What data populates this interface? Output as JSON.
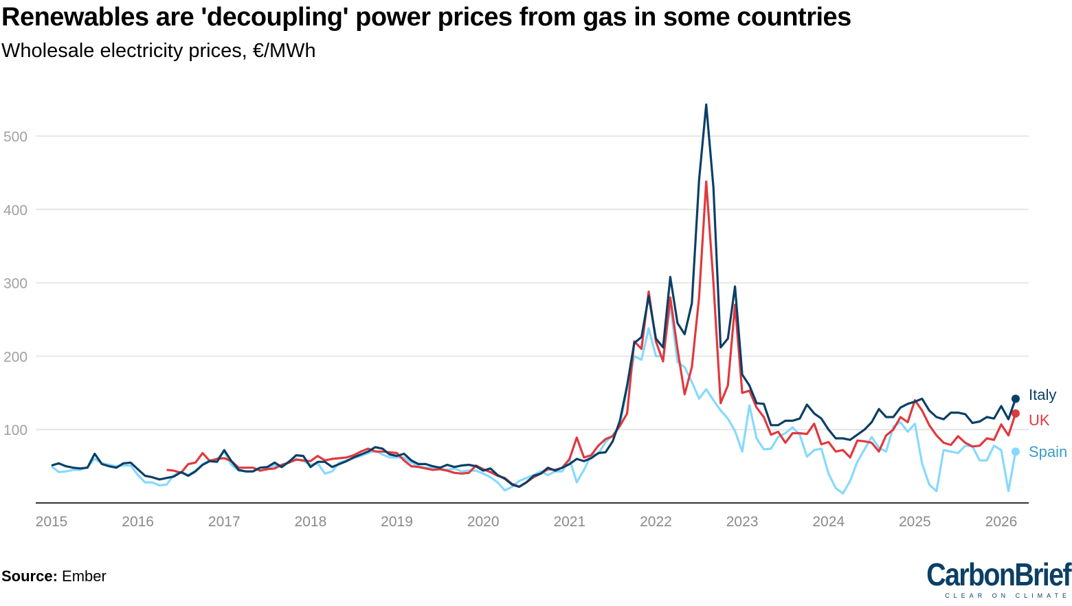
{
  "title": "Renewables are 'decoupling' power prices from gas in some countries",
  "subtitle": "Wholesale electricity prices, €/MWh",
  "source_label": "Source:",
  "source_value": "Ember",
  "logo": {
    "name": "CarbonBrief",
    "tagline": "CLEAR ON CLIMATE"
  },
  "chart_data": {
    "type": "line",
    "title": "Renewables are 'decoupling' power prices from gas in some countries",
    "ylabel": "Wholesale electricity prices, €/MWh",
    "ylim": [
      0,
      550
    ],
    "yticks": [
      100,
      200,
      300,
      400,
      500
    ],
    "xticks": [
      "2015",
      "2016",
      "2017",
      "2018",
      "2019",
      "2020",
      "2021",
      "2022",
      "2023",
      "2024",
      "2025",
      "2026"
    ],
    "grid": "horizontal",
    "legend": "end-of-line labels, right",
    "x": [
      "2015-01",
      "2015-02",
      "2015-03",
      "2015-04",
      "2015-05",
      "2015-06",
      "2015-07",
      "2015-08",
      "2015-09",
      "2015-10",
      "2015-11",
      "2015-12",
      "2016-01",
      "2016-02",
      "2016-03",
      "2016-04",
      "2016-05",
      "2016-06",
      "2016-07",
      "2016-08",
      "2016-09",
      "2016-10",
      "2016-11",
      "2016-12",
      "2017-01",
      "2017-02",
      "2017-03",
      "2017-04",
      "2017-05",
      "2017-06",
      "2017-07",
      "2017-08",
      "2017-09",
      "2017-10",
      "2017-11",
      "2017-12",
      "2018-01",
      "2018-02",
      "2018-03",
      "2018-04",
      "2018-05",
      "2018-06",
      "2018-07",
      "2018-08",
      "2018-09",
      "2018-10",
      "2018-11",
      "2018-12",
      "2019-01",
      "2019-02",
      "2019-03",
      "2019-04",
      "2019-05",
      "2019-06",
      "2019-07",
      "2019-08",
      "2019-09",
      "2019-10",
      "2019-11",
      "2019-12",
      "2020-01",
      "2020-02",
      "2020-03",
      "2020-04",
      "2020-05",
      "2020-06",
      "2020-07",
      "2020-08",
      "2020-09",
      "2020-10",
      "2020-11",
      "2020-12",
      "2021-01",
      "2021-02",
      "2021-03",
      "2021-04",
      "2021-05",
      "2021-06",
      "2021-07",
      "2021-08",
      "2021-09",
      "2021-10",
      "2021-11",
      "2021-12",
      "2022-01",
      "2022-02",
      "2022-03",
      "2022-04",
      "2022-05",
      "2022-06",
      "2022-07",
      "2022-08",
      "2022-09",
      "2022-10",
      "2022-11",
      "2022-12",
      "2023-01",
      "2023-02",
      "2023-03",
      "2023-04",
      "2023-05",
      "2023-06",
      "2023-07",
      "2023-08",
      "2023-09",
      "2023-10",
      "2023-11",
      "2023-12",
      "2024-01",
      "2024-02",
      "2024-03",
      "2024-04",
      "2024-05",
      "2024-06",
      "2024-07",
      "2024-08",
      "2024-09",
      "2024-10",
      "2024-11",
      "2024-12",
      "2025-01",
      "2025-02",
      "2025-03",
      "2025-04",
      "2025-05",
      "2025-06",
      "2025-07",
      "2025-08",
      "2025-09",
      "2025-10",
      "2025-11",
      "2025-12",
      "2026-01",
      "2026-02",
      "2026-03"
    ],
    "series": [
      {
        "name": "Spain",
        "color": "#86d9ff",
        "values": [
          50,
          42,
          43,
          45,
          45,
          49,
          60,
          54,
          52,
          50,
          51,
          51,
          38,
          28,
          28,
          24,
          25,
          38,
          42,
          38,
          44,
          53,
          58,
          60,
          70,
          52,
          44,
          43,
          43,
          48,
          48,
          51,
          49,
          57,
          60,
          57,
          52,
          54,
          40,
          43,
          55,
          58,
          61,
          64,
          68,
          71,
          66,
          62,
          62,
          62,
          55,
          50,
          48,
          48,
          46,
          45,
          47,
          43,
          44,
          44,
          40,
          35,
          28,
          17,
          22,
          30,
          34,
          38,
          43,
          38,
          43,
          43,
          60,
          28,
          45,
          65,
          67,
          83,
          92,
          106,
          156,
          200,
          195,
          238,
          200,
          200,
          270,
          192,
          185,
          165,
          142,
          155,
          140,
          126,
          115,
          98,
          70,
          133,
          88,
          73,
          74,
          90,
          95,
          103,
          93,
          63,
          72,
          74,
          40,
          20,
          13,
          30,
          56,
          73,
          90,
          75,
          70,
          104,
          110,
          97,
          108,
          54,
          25,
          16,
          72,
          70,
          68,
          78,
          77,
          58,
          58,
          78,
          72,
          16,
          70
        ]
      },
      {
        "name": "UK",
        "color": "#e0393e",
        "values": [
          null,
          null,
          null,
          null,
          null,
          null,
          null,
          null,
          null,
          null,
          null,
          null,
          null,
          null,
          null,
          null,
          45,
          44,
          41,
          53,
          55,
          68,
          57,
          60,
          61,
          57,
          48,
          48,
          48,
          44,
          46,
          47,
          52,
          55,
          59,
          58,
          57,
          64,
          58,
          60,
          61,
          62,
          65,
          70,
          74,
          70,
          70,
          69,
          68,
          58,
          50,
          49,
          47,
          45,
          46,
          44,
          41,
          40,
          41,
          51,
          46,
          42,
          37,
          34,
          26,
          22,
          28,
          35,
          40,
          46,
          45,
          48,
          60,
          89,
          62,
          65,
          78,
          87,
          91,
          105,
          122,
          220,
          210,
          288,
          220,
          193,
          280,
          210,
          148,
          185,
          280,
          438,
          300,
          136,
          160,
          270,
          150,
          153,
          130,
          117,
          93,
          97,
          82,
          95,
          95,
          94,
          108,
          80,
          83,
          70,
          72,
          62,
          85,
          84,
          82,
          70,
          92,
          100,
          117,
          110,
          140,
          126,
          106,
          92,
          82,
          79,
          91,
          82,
          77,
          78,
          88,
          86,
          107,
          92,
          122
        ]
      },
      {
        "name": "Italy",
        "color": "#0b3f66",
        "values": [
          51,
          54,
          50,
          48,
          47,
          48,
          67,
          53,
          50,
          48,
          54,
          55,
          46,
          37,
          35,
          32,
          34,
          36,
          42,
          37,
          43,
          52,
          57,
          56,
          72,
          57,
          45,
          43,
          43,
          48,
          49,
          55,
          49,
          56,
          65,
          64,
          49,
          56,
          56,
          49,
          53,
          57,
          62,
          66,
          70,
          76,
          74,
          66,
          64,
          67,
          58,
          53,
          53,
          50,
          48,
          52,
          49,
          51,
          52,
          50,
          44,
          47,
          38,
          33,
          25,
          22,
          28,
          37,
          40,
          48,
          44,
          48,
          53,
          60,
          57,
          61,
          68,
          69,
          84,
          112,
          160,
          218,
          226,
          282,
          224,
          212,
          308,
          245,
          230,
          272,
          440,
          543,
          430,
          212,
          224,
          295,
          175,
          160,
          136,
          135,
          106,
          106,
          112,
          112,
          115,
          134,
          122,
          115,
          100,
          88,
          88,
          86,
          93,
          100,
          110,
          128,
          117,
          117,
          130,
          135,
          138,
          142,
          126,
          117,
          114,
          123,
          123,
          121,
          109,
          111,
          117,
          115,
          132,
          114,
          142
        ]
      }
    ]
  }
}
